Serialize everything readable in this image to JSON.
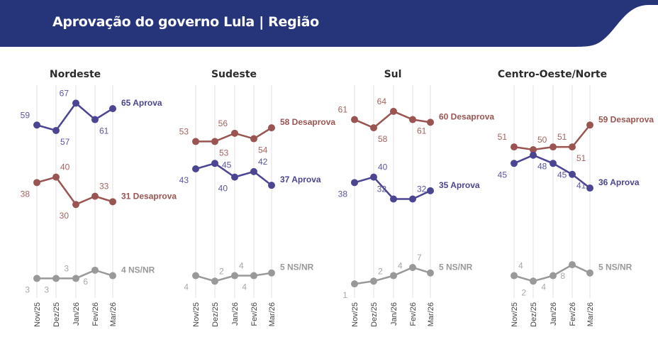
{
  "header": {
    "title": "Aprovação do governo Lula | Região",
    "color": "#26357a"
  },
  "chart_data": [
    {
      "type": "line",
      "title": "Nordeste",
      "categories": [
        "Nov/25",
        "Dez/25",
        "Jan/26",
        "Fev/26",
        "Mar/26"
      ],
      "ylim": [
        0,
        70
      ],
      "series": [
        {
          "name": "Aprova",
          "color": "#4b4592",
          "label_color": "#5a55a0",
          "values": [
            59,
            57,
            67,
            61,
            65
          ],
          "label_pos": [
            "ul",
            "dr",
            "ul",
            "dr"
          ]
        },
        {
          "name": "Desaprova",
          "color": "#9a5552",
          "label_color": "#a5625e",
          "values": [
            38,
            40,
            30,
            33,
            31
          ],
          "label_pos": [
            "dl",
            "ur",
            "dl",
            "ur"
          ]
        },
        {
          "name": "NS/NR",
          "color": "#999999",
          "label_color": "#a8a8a8",
          "values": [
            3,
            3,
            3,
            6,
            4
          ],
          "label_pos": [
            "dl",
            "dl",
            "ul",
            "dl"
          ]
        }
      ]
    },
    {
      "type": "line",
      "title": "Sudeste",
      "categories": [
        "Nov/25",
        "Dez/25",
        "Jan/26",
        "Fev/26",
        "Mar/26"
      ],
      "ylim": [
        0,
        70
      ],
      "series": [
        {
          "name": "Desaprova",
          "color": "#9a5552",
          "label_color": "#a5625e",
          "values": [
            53,
            53,
            56,
            54,
            58
          ],
          "label_pos": [
            "ul",
            "dr",
            "ul",
            "dr"
          ]
        },
        {
          "name": "Aprova",
          "color": "#4b4592",
          "label_color": "#5a55a0",
          "values": [
            43,
            45,
            40,
            42,
            37
          ],
          "label_pos": [
            "dl",
            "rr",
            "dl",
            "ur"
          ]
        },
        {
          "name": "NS/NR",
          "color": "#999999",
          "label_color": "#a8a8a8",
          "values": [
            4,
            2,
            4,
            4,
            5
          ],
          "label_pos": [
            "dl",
            "ur",
            "ur",
            "dl"
          ]
        }
      ]
    },
    {
      "type": "line",
      "title": "Sul",
      "categories": [
        "Nov/25",
        "Dez/25",
        "Jan/26",
        "Fev/26",
        "Mar/26"
      ],
      "ylim": [
        0,
        70
      ],
      "series": [
        {
          "name": "Desaprova",
          "color": "#9a5552",
          "label_color": "#a5625e",
          "values": [
            61,
            58,
            64,
            61,
            60
          ],
          "label_pos": [
            "ul",
            "dr",
            "ul",
            "dr"
          ]
        },
        {
          "name": "Aprova",
          "color": "#4b4592",
          "label_color": "#5a55a0",
          "values": [
            38,
            40,
            32,
            32,
            35
          ],
          "label_pos": [
            "dl",
            "ur",
            "ul",
            "ur"
          ]
        },
        {
          "name": "NS/NR",
          "color": "#999999",
          "label_color": "#a8a8a8",
          "values": [
            1,
            2,
            4,
            7,
            5
          ],
          "label_pos": [
            "dl",
            "ur",
            "ur",
            "ur"
          ]
        }
      ]
    },
    {
      "type": "line",
      "title": "Centro-Oeste/Norte",
      "categories": [
        "Nov/25",
        "Dez/25",
        "Jan/26",
        "Fev/26",
        "Mar/26"
      ],
      "ylim": [
        0,
        70
      ],
      "series": [
        {
          "name": "Desaprova",
          "color": "#9a5552",
          "label_color": "#a5625e",
          "values": [
            51,
            50,
            51,
            51,
            59
          ],
          "label_pos": [
            "ul",
            "ur",
            "ur",
            "dr"
          ]
        },
        {
          "name": "Aprova",
          "color": "#4b4592",
          "label_color": "#5a55a0",
          "values": [
            45,
            48,
            45,
            41,
            36
          ],
          "label_pos": [
            "dl",
            "dr",
            "dr",
            "dr"
          ]
        },
        {
          "name": "NS/NR",
          "color": "#999999",
          "label_color": "#a8a8a8",
          "values": [
            4,
            2,
            4,
            8,
            5
          ],
          "label_pos": [
            "ur",
            "dl",
            "dl",
            "dl"
          ]
        }
      ]
    }
  ]
}
